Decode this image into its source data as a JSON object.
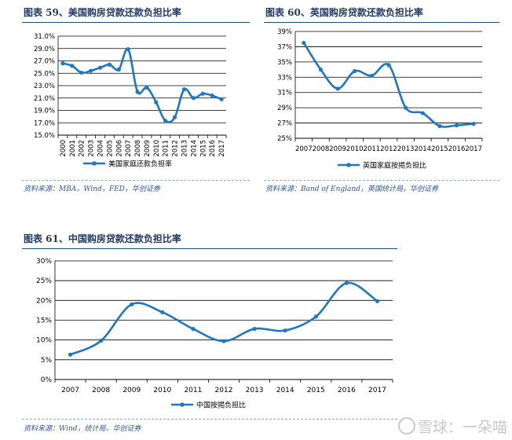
{
  "panels": [
    {
      "title": "图表 59、美国购房贷款还款负担比率",
      "source": "资料来源：MBA，Wind，FED，华创证券"
    },
    {
      "title": "图表 60、英国购房贷款还款负担比率",
      "source": "资料来源：Band of England，英国统计局，华创证券"
    },
    {
      "title": "图表 61、中国购房贷款还款负担比率",
      "source": "资料来源：Wind，统计局，华创证券"
    }
  ],
  "watermark": "雪球：一朵喵",
  "colors": {
    "line": "#1f77c4",
    "title": "#1f3864",
    "grid": "#000000"
  },
  "chart_data": [
    {
      "type": "line",
      "x": [
        "2000",
        "2001",
        "2002",
        "2003",
        "2004",
        "2005",
        "2006",
        "2007",
        "2008",
        "2009",
        "2010",
        "2011",
        "2012",
        "2013",
        "2014",
        "2015",
        "2016",
        "2017"
      ],
      "series": [
        {
          "name": "美国家庭还款负担率",
          "values": [
            26.6,
            26.2,
            25.1,
            25.4,
            25.9,
            26.4,
            25.6,
            28.9,
            22.0,
            22.7,
            20.3,
            17.3,
            17.9,
            22.4,
            21.0,
            21.7,
            21.4,
            20.8
          ]
        }
      ],
      "yticks": [
        "31.0%",
        "29.0%",
        "27.0%",
        "25.0%",
        "23.0%",
        "21.0%",
        "19.0%",
        "17.0%",
        "15.0%"
      ],
      "ylim": [
        15,
        31
      ],
      "grid": "horizontal",
      "legend": "bottom"
    },
    {
      "type": "line",
      "x": [
        "2007",
        "2008",
        "2009",
        "2010",
        "2011",
        "2012",
        "2013",
        "2014",
        "2015",
        "2016",
        "2017"
      ],
      "series": [
        {
          "name": "英国家庭按揭负担比",
          "values": [
            37.5,
            34.0,
            31.5,
            33.8,
            33.2,
            34.6,
            29.0,
            28.3,
            26.6,
            26.7,
            26.9
          ]
        }
      ],
      "yticks": [
        "39%",
        "37%",
        "35%",
        "33%",
        "31%",
        "29%",
        "27%",
        "25%"
      ],
      "ylim": [
        25,
        39
      ],
      "grid": "horizontal",
      "legend": "bottom"
    },
    {
      "type": "line",
      "x": [
        "2007",
        "2008",
        "2009",
        "2010",
        "2011",
        "2012",
        "2013",
        "2014",
        "2015",
        "2016",
        "2017"
      ],
      "series": [
        {
          "name": "中国按揭负担比",
          "values": [
            6.3,
            9.8,
            19.0,
            17.0,
            12.8,
            9.7,
            12.8,
            12.4,
            15.9,
            24.4,
            19.8
          ]
        }
      ],
      "yticks": [
        "30%",
        "25%",
        "20%",
        "15%",
        "10%",
        "5%",
        "0%"
      ],
      "ylim": [
        0,
        30
      ],
      "grid": "horizontal",
      "legend": "bottom"
    }
  ]
}
